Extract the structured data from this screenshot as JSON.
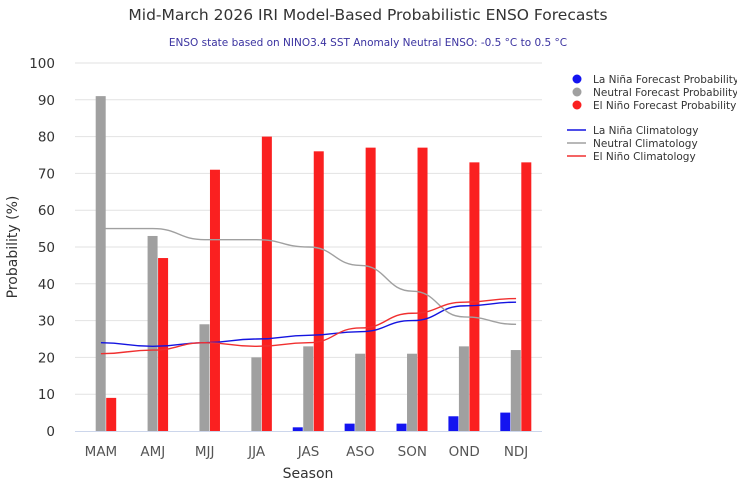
{
  "chart_data": {
    "type": "bar",
    "title": "Mid-March 2026 IRI Model-Based Probabilistic ENSO Forecasts",
    "subtitle": "ENSO state based on NINO3.4 SST Anomaly Neutral ENSO: -0.5 °C to 0.5 °C",
    "xlabel": "Season",
    "ylabel": "Probability (%)",
    "ylim": [
      0,
      100
    ],
    "yticks": [
      0,
      10,
      20,
      30,
      40,
      50,
      60,
      70,
      80,
      90,
      100
    ],
    "grid": true,
    "legend_position": "right",
    "categories": [
      "MAM",
      "AMJ",
      "MJJ",
      "JJA",
      "JAS",
      "ASO",
      "SON",
      "OND",
      "NDJ"
    ],
    "series": [
      {
        "name": "La Niña Forecast Probability",
        "kind": "bar",
        "color": "#1414f0",
        "values": [
          0,
          0,
          0,
          0,
          1,
          2,
          2,
          4,
          5
        ]
      },
      {
        "name": "Neutral Forecast Probability",
        "kind": "bar",
        "color": "#a0a0a0",
        "values": [
          91,
          53,
          29,
          20,
          23,
          21,
          21,
          23,
          22
        ]
      },
      {
        "name": "El Niño Forecast Probability",
        "kind": "bar",
        "color": "#fa2020",
        "values": [
          9,
          47,
          71,
          80,
          76,
          77,
          77,
          73,
          73
        ]
      },
      {
        "name": "La Niña Climatology",
        "kind": "line",
        "color": "#1414e0",
        "values": [
          24,
          23,
          24,
          25,
          26,
          27,
          30,
          34,
          35
        ]
      },
      {
        "name": "Neutral Climatology",
        "kind": "line",
        "color": "#a0a0a0",
        "values": [
          55,
          55,
          52,
          52,
          50,
          45,
          38,
          31,
          29
        ]
      },
      {
        "name": "El Niño Climatology",
        "kind": "line",
        "color": "#f03030",
        "values": [
          21,
          22,
          24,
          23,
          24,
          28,
          32,
          35,
          36
        ]
      }
    ]
  }
}
